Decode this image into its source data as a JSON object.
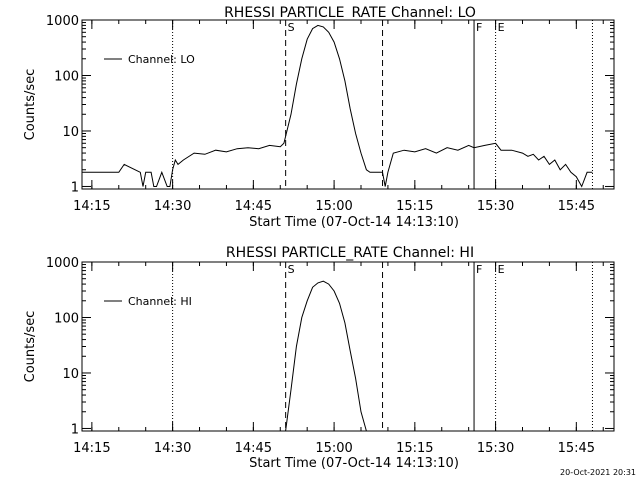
{
  "footer_timestamp": "20-Oct-2021 20:31",
  "chart_data": [
    {
      "type": "line",
      "title": "RHESSI PARTICLE_RATE Channel: LO",
      "xlabel": "Start Time (07-Oct-14 14:13:10)",
      "ylabel": "Counts/sec",
      "yscale": "log",
      "ylim": [
        0.9,
        1000
      ],
      "xlim": [
        "14:13:10",
        "15:52:00"
      ],
      "x_ticks": [
        "14:15",
        "14:30",
        "14:45",
        "15:00",
        "15:15",
        "15:30",
        "15:45"
      ],
      "y_ticks": [
        "1",
        "10",
        "100",
        "1000"
      ],
      "legend": {
        "position": "top-left",
        "entries": [
          "Channel: LO"
        ]
      },
      "markers": [
        {
          "time": "14:30",
          "style": "dotted",
          "label": ""
        },
        {
          "time": "14:51",
          "style": "dashed",
          "label": "S"
        },
        {
          "time": "15:09",
          "style": "dashed",
          "label": ""
        },
        {
          "time": "15:26",
          "style": "solid",
          "label": "F"
        },
        {
          "time": "15:30",
          "style": "dotted",
          "label": "E"
        },
        {
          "time": "15:48",
          "style": "dotted",
          "label": ""
        }
      ],
      "series": [
        {
          "name": "Channel: LO",
          "x": [
            "14:13:10",
            "14:20",
            "14:21",
            "14:24",
            "14:24:30",
            "14:25",
            "14:26",
            "14:26:30",
            "14:27",
            "14:28",
            "14:29",
            "14:29:30",
            "14:30",
            "14:30:30",
            "14:31",
            "14:32",
            "14:34",
            "14:36",
            "14:38",
            "14:40",
            "14:42",
            "14:44",
            "14:46",
            "14:48",
            "14:50",
            "14:50:40",
            "14:51",
            "14:52",
            "14:53",
            "14:54",
            "14:55",
            "14:56",
            "14:57",
            "14:58",
            "14:59",
            "15:00",
            "15:01",
            "15:02",
            "15:03",
            "15:04",
            "15:05",
            "15:06",
            "15:06:40",
            "15:07",
            "15:09",
            "15:09:30",
            "15:10",
            "15:11",
            "15:13",
            "15:15",
            "15:17",
            "15:19",
            "15:21",
            "15:23",
            "15:25",
            "15:26",
            "15:28",
            "15:30",
            "15:31",
            "15:33",
            "15:35",
            "15:36",
            "15:37",
            "15:38",
            "15:39",
            "15:40",
            "15:41",
            "15:42",
            "15:43",
            "15:44",
            "15:45",
            "15:46",
            "15:47",
            "15:48"
          ],
          "y": [
            1.8,
            1.8,
            2.5,
            1.8,
            1.0,
            1.8,
            1.8,
            1.0,
            1.0,
            1.8,
            1.0,
            1.0,
            2.0,
            3.0,
            2.5,
            3.0,
            4.0,
            3.8,
            4.5,
            4.2,
            4.8,
            5.0,
            4.8,
            5.5,
            5.2,
            6.0,
            8.0,
            20,
            70,
            200,
            450,
            700,
            800,
            750,
            600,
            400,
            200,
            80,
            25,
            9.0,
            4.0,
            2.0,
            1.8,
            1.8,
            1.8,
            1.0,
            1.8,
            4.0,
            4.5,
            4.2,
            4.8,
            4.0,
            5.0,
            4.5,
            5.5,
            5.0,
            5.5,
            6.0,
            4.5,
            4.5,
            4.0,
            3.5,
            3.8,
            3.0,
            3.5,
            2.5,
            3.0,
            2.0,
            2.5,
            1.8,
            1.5,
            1.0,
            1.8,
            1.8
          ]
        }
      ]
    },
    {
      "type": "line",
      "title": "RHESSI PARTICLE_RATE Channel: HI",
      "xlabel": "Start Time (07-Oct-14 14:13:10)",
      "ylabel": "Counts/sec",
      "yscale": "log",
      "ylim": [
        0.9,
        1000
      ],
      "xlim": [
        "14:13:10",
        "15:52:00"
      ],
      "x_ticks": [
        "14:15",
        "14:30",
        "14:45",
        "15:00",
        "15:15",
        "15:30",
        "15:45"
      ],
      "y_ticks": [
        "1",
        "10",
        "100",
        "1000"
      ],
      "legend": {
        "position": "top-left",
        "entries": [
          "Channel: HI"
        ]
      },
      "markers": [
        {
          "time": "14:30",
          "style": "dotted",
          "label": ""
        },
        {
          "time": "14:51",
          "style": "dashed",
          "label": "S"
        },
        {
          "time": "15:09",
          "style": "dashed",
          "label": ""
        },
        {
          "time": "15:26",
          "style": "solid",
          "label": "F"
        },
        {
          "time": "15:30",
          "style": "dotted",
          "label": "E"
        },
        {
          "time": "15:48",
          "style": "dotted",
          "label": ""
        }
      ],
      "series": [
        {
          "name": "Channel: HI",
          "x": [
            "14:51",
            "14:52",
            "14:53",
            "14:54",
            "14:55",
            "14:56",
            "14:57",
            "14:58",
            "14:59",
            "15:00",
            "15:01",
            "15:02",
            "15:03",
            "15:04",
            "15:05",
            "15:06"
          ],
          "y": [
            0.9,
            5,
            30,
            100,
            200,
            350,
            420,
            450,
            400,
            300,
            180,
            80,
            25,
            8,
            2,
            0.9
          ]
        }
      ]
    }
  ]
}
